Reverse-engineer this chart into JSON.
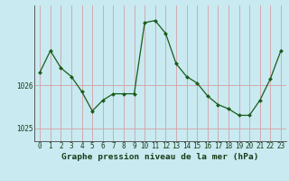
{
  "x": [
    0,
    1,
    2,
    3,
    4,
    5,
    6,
    7,
    8,
    9,
    10,
    11,
    12,
    13,
    14,
    15,
    16,
    17,
    18,
    19,
    20,
    21,
    22,
    23
  ],
  "y": [
    1026.3,
    1026.8,
    1026.4,
    1026.2,
    1025.85,
    1025.4,
    1025.65,
    1025.8,
    1025.8,
    1025.8,
    1027.45,
    1027.5,
    1027.2,
    1026.5,
    1026.2,
    1026.05,
    1025.75,
    1025.55,
    1025.45,
    1025.3,
    1025.3,
    1025.65,
    1026.15,
    1026.8
  ],
  "title": "Graphe pression niveau de la mer (hPa)",
  "ylabel_ticks": [
    1025,
    1026
  ],
  "ylim": [
    1024.7,
    1027.85
  ],
  "xlim": [
    -0.5,
    23.5
  ],
  "bg_color": "#c8eaf0",
  "line_color": "#1a5c1a",
  "marker_color": "#1a5c1a",
  "vgrid_color": "#d4a0a8",
  "hgrid_color": "#b0c8d0",
  "axis_label_color": "#1a3c1a",
  "title_color": "#1a3c1a",
  "title_fontsize": 6.8,
  "tick_fontsize": 5.5
}
